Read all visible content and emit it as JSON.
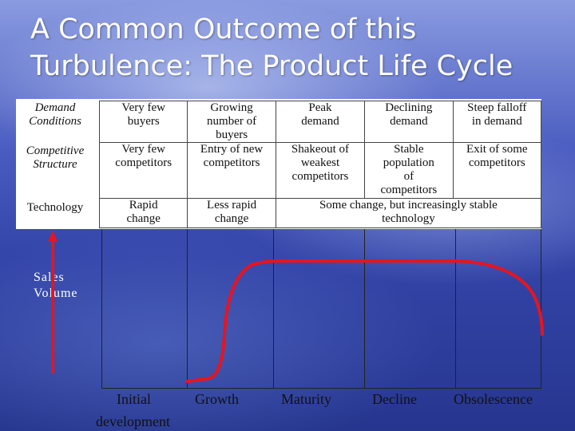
{
  "title": {
    "line1": "A Common Outcome of this",
    "line2": "Turbulence: The Product Life Cycle"
  },
  "rows": [
    {
      "label_line1": "Demand",
      "label_line2": "Conditions",
      "cells": [
        [
          "Very few",
          "buyers"
        ],
        [
          "Growing",
          "number of",
          "buyers"
        ],
        [
          "Peak",
          "demand"
        ],
        [
          "Declining",
          "demand"
        ],
        [
          "Steep falloff",
          "in demand"
        ]
      ]
    },
    {
      "label_line1": "Competitive",
      "label_line2": "Structure",
      "cells": [
        [
          "Very few",
          "competitors"
        ],
        [
          "Entry of new",
          "competitors"
        ],
        [
          "Shakeout of",
          "weakest",
          "competitors"
        ],
        [
          "Stable",
          "population",
          "of",
          "competitors"
        ],
        [
          "Exit of some",
          "competitors"
        ]
      ]
    },
    {
      "label_line1": "Technology",
      "cells": [
        [
          "Rapid",
          "change"
        ],
        [
          "Less rapid",
          "change"
        ],
        [
          "Some change, but increasingly stable",
          "technology"
        ]
      ]
    }
  ],
  "axis": {
    "line1": "Sales",
    "line2": "Volume"
  },
  "stages": [
    {
      "line1": "Initial",
      "line2": "development"
    },
    {
      "line1": "Growth"
    },
    {
      "line1": "Maturity"
    },
    {
      "line1": "Decline"
    },
    {
      "line1": "Obsolescence"
    }
  ],
  "colors": {
    "curve": "#e8141e",
    "arrow": "#e8141e"
  }
}
